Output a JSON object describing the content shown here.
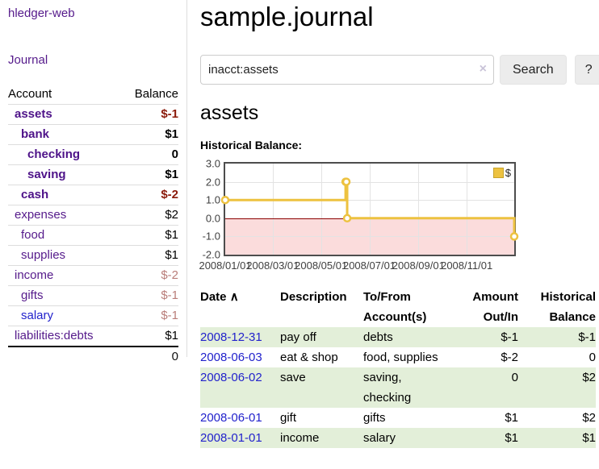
{
  "app": {
    "brand": "hledger-web",
    "nav_journal": "Journal"
  },
  "sidebar": {
    "header": {
      "account": "Account",
      "balance": "Balance"
    },
    "accounts": [
      {
        "name": "assets",
        "depth": 1,
        "bold": true,
        "balance": "$-1",
        "balance_class": "neg"
      },
      {
        "name": "bank",
        "depth": 2,
        "bold": true,
        "balance": "$1",
        "balance_class": ""
      },
      {
        "name": "checking",
        "depth": 3,
        "bold": true,
        "balance": "0",
        "balance_class": ""
      },
      {
        "name": "saving",
        "depth": 3,
        "bold": true,
        "balance": "$1",
        "balance_class": ""
      },
      {
        "name": "cash",
        "depth": 2,
        "bold": true,
        "balance": "$-2",
        "balance_class": "neg"
      },
      {
        "name": "expenses",
        "depth": 1,
        "bold": false,
        "balance": "$2",
        "balance_class": ""
      },
      {
        "name": "food",
        "depth": 2,
        "bold": false,
        "balance": "$1",
        "balance_class": ""
      },
      {
        "name": "supplies",
        "depth": 2,
        "bold": false,
        "balance": "$1",
        "balance_class": ""
      },
      {
        "name": "income",
        "depth": 1,
        "bold": false,
        "balance": "$-2",
        "balance_class": "neg-dim"
      },
      {
        "name": "gifts",
        "depth": 2,
        "bold": false,
        "balance": "$-1",
        "balance_class": "neg-dim"
      },
      {
        "name": "salary",
        "depth": 2,
        "bold": false,
        "balance": "$-1",
        "balance_class": "neg-dim",
        "link_color": "#2222cc"
      },
      {
        "name": "liabilities:debts",
        "depth": 1,
        "bold": false,
        "balance": "$1",
        "balance_class": ""
      }
    ],
    "total": "0"
  },
  "main": {
    "title": "sample.journal",
    "search": {
      "value": "inacct:assets",
      "clear_icon": "×",
      "search_button": "Search",
      "help_button": "?"
    },
    "account_heading": "assets",
    "chart_heading": "Historical Balance:"
  },
  "chart_data": {
    "type": "line",
    "title": "Historical Balance",
    "step": true,
    "ylim": [
      -2,
      3
    ],
    "x_range": [
      "2008-01-01",
      "2008-12-31"
    ],
    "series": [
      {
        "name": "$",
        "color": "#edc240",
        "points": [
          [
            "2008-01-01",
            1
          ],
          [
            "2008-06-01",
            2
          ],
          [
            "2008-06-02",
            2
          ],
          [
            "2008-06-03",
            0
          ],
          [
            "2008-12-31",
            -1
          ]
        ]
      }
    ],
    "x_ticks": [
      "2008/01/01",
      "2008/03/01",
      "2008/05/01",
      "2008/07/01",
      "2008/09/01",
      "2008/11/01"
    ],
    "y_ticks": [
      "3.0",
      "2.0",
      "1.0",
      "0.0",
      "-1.0",
      "-2.0"
    ],
    "legend": {
      "label": "$",
      "position": "top-right"
    },
    "grid": true,
    "negative_region_color": "#fbdcdc",
    "zero_line_color": "#8b0000",
    "border_color": "#4d4d4d"
  },
  "register": {
    "headers": [
      {
        "label": "Date",
        "sort_icon": "∧",
        "align": "left"
      },
      {
        "label": "Description",
        "align": "left"
      },
      {
        "label": "To/From Account(s)",
        "align": "left"
      },
      {
        "label": "Amount Out/In",
        "align": "right"
      },
      {
        "label": "Historical Balance",
        "align": "right"
      }
    ],
    "rows": [
      {
        "date": "2008-12-31",
        "description": "pay off",
        "accounts": "debts",
        "amount": "$-1",
        "amount_negative": true,
        "balance": "$-1",
        "balance_negative": true
      },
      {
        "date": "2008-06-03",
        "description": "eat & shop",
        "accounts": "food, supplies",
        "amount": "$-2",
        "amount_negative": true,
        "balance": "0",
        "balance_negative": false
      },
      {
        "date": "2008-06-02",
        "description": "save",
        "accounts": "saving,\nchecking",
        "amount": "0",
        "amount_negative": false,
        "balance": "$2",
        "balance_negative": false
      },
      {
        "date": "2008-06-01",
        "description": "gift",
        "accounts": "gifts",
        "amount": "$1",
        "amount_negative": false,
        "balance": "$2",
        "balance_negative": false
      },
      {
        "date": "2008-01-01",
        "description": "income",
        "accounts": "salary",
        "amount": "$1",
        "amount_negative": false,
        "balance": "$1",
        "balance_negative": false
      }
    ]
  }
}
